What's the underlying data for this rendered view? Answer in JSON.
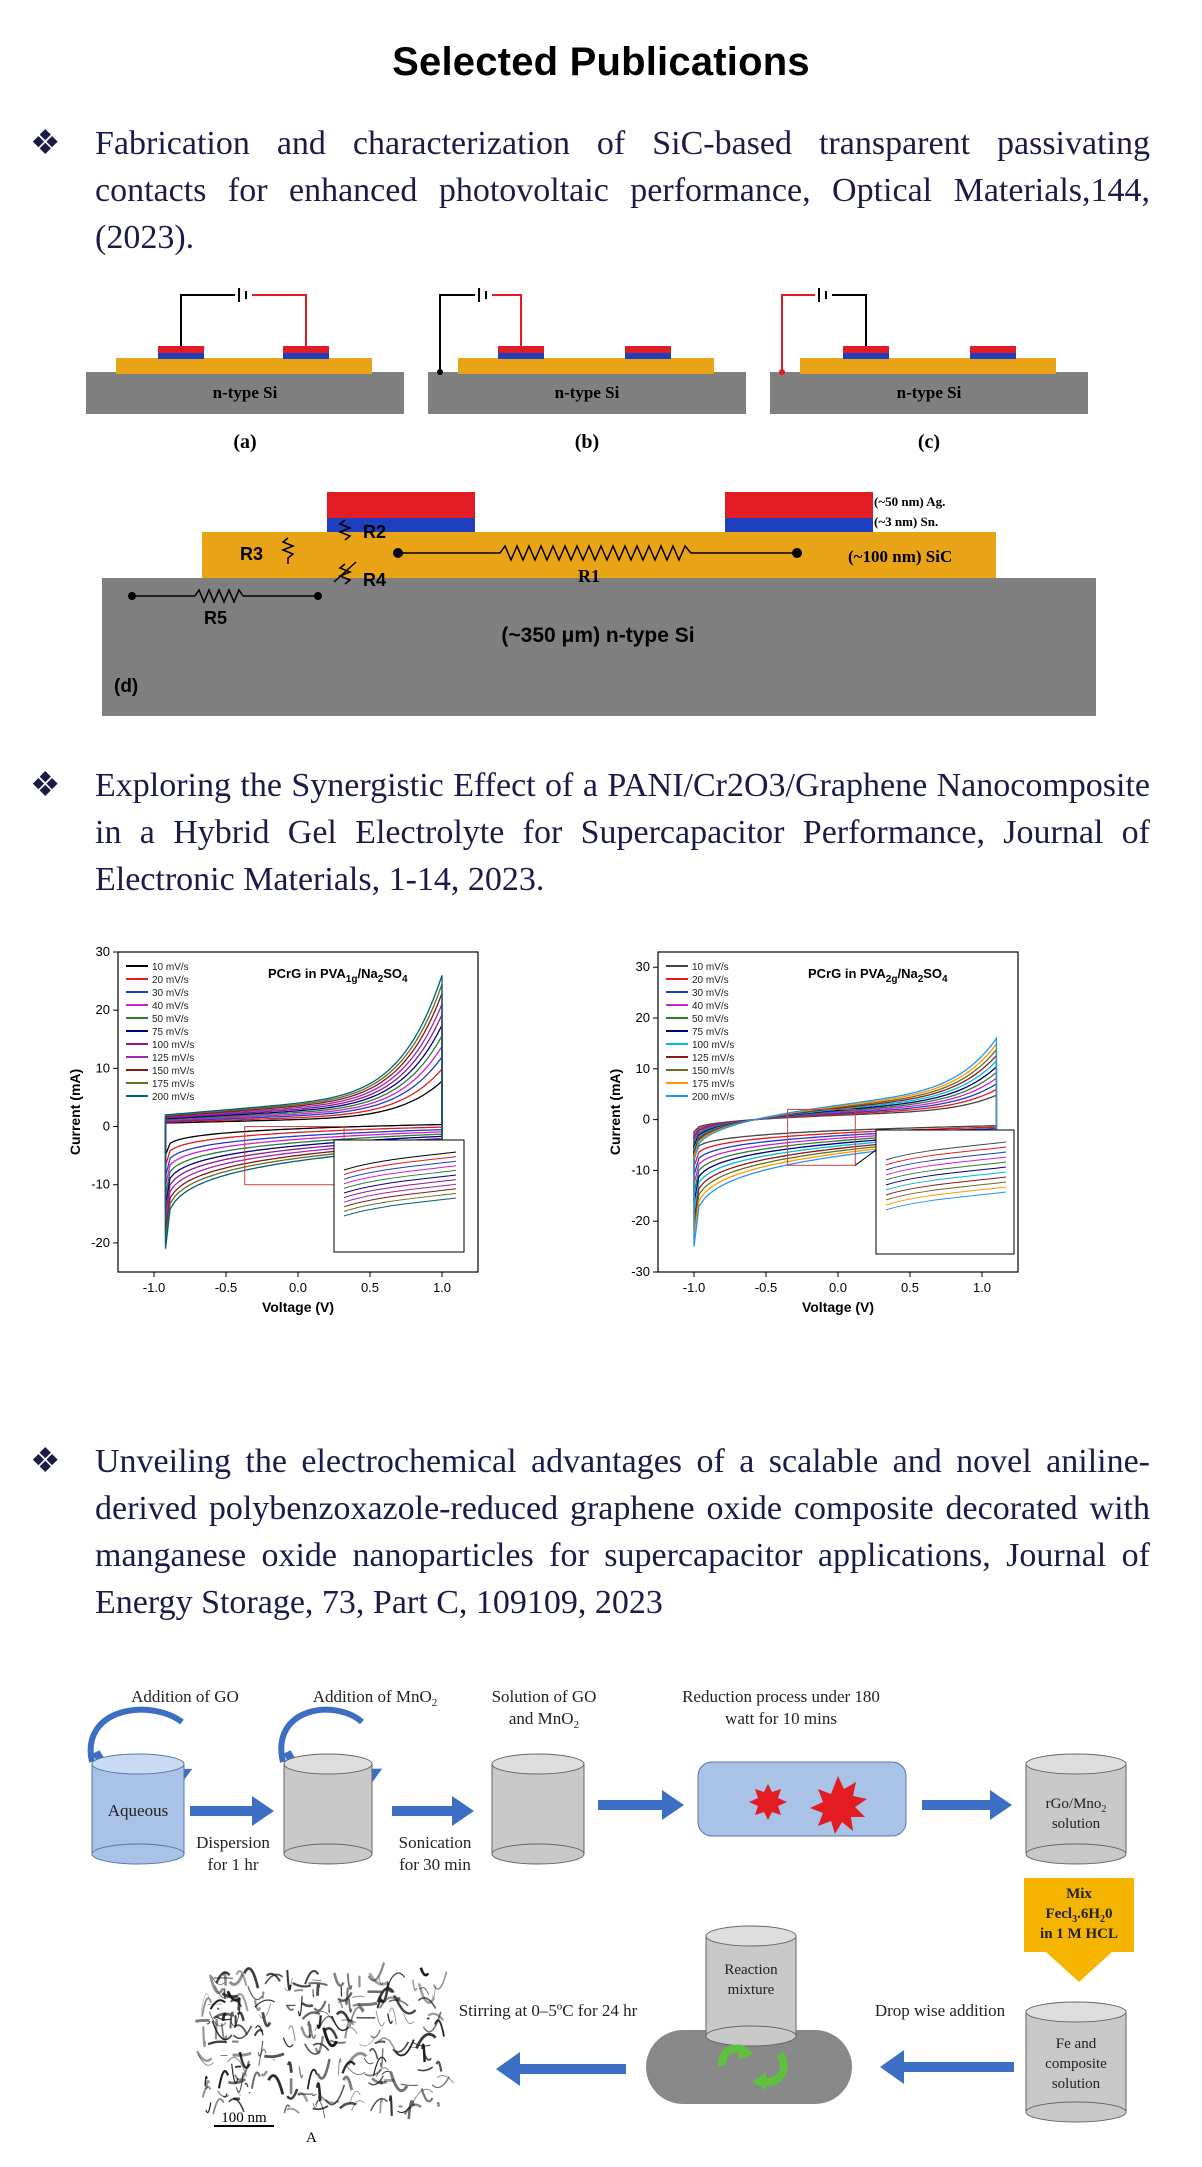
{
  "page_title": "Selected Publications",
  "bullet_glyph": "❖",
  "publications": [
    {
      "text": "Fabrication and characterization of SiC-based transparent passivating contacts for enhanced photovoltaic performance, Optical Materials,144, (2023)."
    },
    {
      "text": "Exploring the Synergistic Effect of a PANI/Cr2O3/Graphene Nanocomposite in a Hybrid Gel Electrolyte for Supercapacitor Performance, Journal of Electronic Materials, 1-14, 2023."
    },
    {
      "text": "Unveiling the electrochemical advantages of a scalable and novel aniline-derived polybenzoxazole-reduced graphene oxide composite decorated with manganese oxide nanoparticles for supercapacitor applications, Journal of Energy Storage, 73, Part C, 109109, 2023"
    }
  ],
  "figure1": {
    "substrate_label": "n-type Si",
    "panel_labels": [
      "(a)",
      "(b)",
      "(c)",
      "(d)"
    ],
    "layer_ag": "(~50 nm) Ag.",
    "layer_sn": "(~3 nm) Sn.",
    "layer_sic": "(~100 nm) SiC",
    "substrate_d": "(~350 μm) n-type Si",
    "resistors": [
      "R1",
      "R2",
      "R3",
      "R4",
      "R5"
    ],
    "colors": {
      "substrate": "#7f7f7f",
      "sic": "#e8a317",
      "ag": "#e31b23",
      "sn": "#1f3fbf",
      "wire_red": "#e31b23"
    }
  },
  "figure2": {
    "charts": [
      {
        "title_main": "PCrG in PVA",
        "title_sub": "1g",
        "title_tail": "/Na",
        "title_sub2": "2",
        "title_tail2": "SO",
        "title_sub3": "4",
        "xlabel": "Voltage (V)",
        "ylabel": "Current (mA)",
        "xticks": [
          "-1.0",
          "-0.5",
          "0.0",
          "0.5",
          "1.0"
        ],
        "yticks": [
          "30",
          "20",
          "10",
          "0",
          "-10",
          "-20"
        ]
      },
      {
        "title_main": "PCrG in PVA",
        "title_sub": "2g",
        "title_tail": "/Na",
        "title_sub2": "2",
        "title_tail2": "SO",
        "title_sub3": "4",
        "xlabel": "Voltage (V)",
        "ylabel": "Current (mA)",
        "xticks": [
          "-1.0",
          "-0.5",
          "0.0",
          "0.5",
          "1.0"
        ],
        "yticks": [
          "30",
          "20",
          "10",
          "0",
          "-10",
          "-20",
          "-30"
        ]
      }
    ]
  },
  "chart_data": [
    {
      "type": "line",
      "title": "PCrG in PVA1g/Na2SO4",
      "xlabel": "Voltage (V)",
      "ylabel": "Current (mA)",
      "xlim": [
        -1.25,
        1.25
      ],
      "ylim": [
        -25,
        30
      ],
      "legend_position": "top-left",
      "series": [
        {
          "name": "10 mV/s",
          "color": "#000000",
          "scale": 0.3
        },
        {
          "name": "20 mV/s",
          "color": "#e41a1c",
          "scale": 0.38
        },
        {
          "name": "30 mV/s",
          "color": "#1f3fbf",
          "scale": 0.46
        },
        {
          "name": "40 mV/s",
          "color": "#d01fd0",
          "scale": 0.53
        },
        {
          "name": "50 mV/s",
          "color": "#2e7d32",
          "scale": 0.6
        },
        {
          "name": "75 mV/s",
          "color": "#000080",
          "scale": 0.67
        },
        {
          "name": "100 mV/s",
          "color": "#8b1a8b",
          "scale": 0.74
        },
        {
          "name": "125 mV/s",
          "color": "#9c27b0",
          "scale": 0.81
        },
        {
          "name": "150 mV/s",
          "color": "#7b1c1c",
          "scale": 0.88
        },
        {
          "name": "175 mV/s",
          "color": "#6b6b1f",
          "scale": 0.94
        },
        {
          "name": "200 mV/s",
          "color": "#00607a",
          "scale": 1.0
        }
      ]
    },
    {
      "type": "line",
      "title": "PCrG in PVA2g/Na2SO4",
      "xlabel": "Voltage (V)",
      "ylabel": "Current (mA)",
      "xlim": [
        -1.25,
        1.25
      ],
      "ylim": [
        -30,
        33
      ],
      "legend_position": "top-left",
      "series": [
        {
          "name": "10 mV/s",
          "color": "#444444",
          "scale": 0.3
        },
        {
          "name": "20 mV/s",
          "color": "#e41a1c",
          "scale": 0.37
        },
        {
          "name": "30 mV/s",
          "color": "#1f3fbf",
          "scale": 0.44
        },
        {
          "name": "40 mV/s",
          "color": "#d01fd0",
          "scale": 0.51
        },
        {
          "name": "50 mV/s",
          "color": "#2e7d32",
          "scale": 0.58
        },
        {
          "name": "75 mV/s",
          "color": "#000080",
          "scale": 0.65
        },
        {
          "name": "100 mV/s",
          "color": "#00bcd4",
          "scale": 0.72
        },
        {
          "name": "125 mV/s",
          "color": "#8b1a1a",
          "scale": 0.79
        },
        {
          "name": "150 mV/s",
          "color": "#6b6b1f",
          "scale": 0.86
        },
        {
          "name": "175 mV/s",
          "color": "#ff9800",
          "scale": 0.93
        },
        {
          "name": "200 mV/s",
          "color": "#2196f3",
          "scale": 1.0
        }
      ]
    }
  ],
  "figure3": {
    "steps": {
      "addition_go": "Addition of GO",
      "addition_mno2": "Addition of MnO",
      "addition_mno2_sub": "2",
      "solution_go_mno2_1": "Solution of GO",
      "solution_go_mno2_2": "and MnO",
      "solution_go_mno2_sub": "2",
      "reduction_1": "Reduction process under 180",
      "reduction_2": "watt for 10 mins",
      "aqueous": "Aqueous",
      "dispersion_1": "Dispersion",
      "dispersion_2": "for 1 hr",
      "sonication_1": "Sonication",
      "sonication_2": "for 30 min",
      "rgo_1": "rGo/Mno",
      "rgo_sub": "2",
      "rgo_2": "solution",
      "mix_1": "Mix",
      "mix_2": "Fecl",
      "mix_2b": ".6H",
      "mix_2c": "0",
      "mix_3": "in 1 M HCL",
      "reaction_1": "Reaction",
      "reaction_2": "mixture",
      "stirring": "Stirring at 0–5ºC for 24 hr",
      "dropwise": "Drop wise addition",
      "fe_1": "Fe and",
      "fe_2": "composite",
      "fe_3": "solution",
      "scale_bar": "100 nm",
      "image_label": "A"
    },
    "colors": {
      "arrow": "#3c6fc4",
      "cylinder_blue": "#a8c3e6",
      "cylinder_grey": "#c8c8c8",
      "mix_box": "#f5b400",
      "star_red": "#e31b23",
      "reactor": "#888888",
      "green_arrow": "#5fbf3f"
    }
  }
}
